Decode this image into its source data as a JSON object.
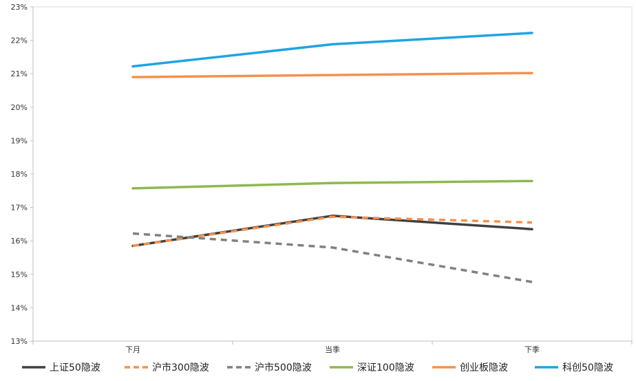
{
  "chart_data": {
    "type": "line",
    "title": "",
    "xlabel": "",
    "ylabel": "",
    "categories": [
      "下月",
      "当季",
      "下季"
    ],
    "y_ticks": [
      "13%",
      "14%",
      "15%",
      "16%",
      "17%",
      "18%",
      "19%",
      "20%",
      "21%",
      "22%",
      "23%"
    ],
    "ylim": [
      13,
      23
    ],
    "y_unit": "%",
    "grid": false,
    "legend_position": "bottom",
    "series": [
      {
        "name": "上证50隐波",
        "values": [
          15.85,
          16.75,
          16.35
        ],
        "color": "#404040",
        "dash": "solid"
      },
      {
        "name": "沪市300隐波",
        "values": [
          15.85,
          16.72,
          16.55
        ],
        "color": "#F4914B",
        "dash": "dashed"
      },
      {
        "name": "沪市500隐波",
        "values": [
          16.22,
          15.8,
          14.77
        ],
        "color": "#808080",
        "dash": "dashed"
      },
      {
        "name": "深证100隐波",
        "values": [
          17.57,
          17.73,
          17.79
        ],
        "color": "#8DB94E",
        "dash": "solid"
      },
      {
        "name": "创业板隐波",
        "values": [
          20.9,
          20.96,
          21.02
        ],
        "color": "#F4914B",
        "dash": "solid"
      },
      {
        "name": "科创50隐波",
        "values": [
          21.22,
          21.88,
          22.22
        ],
        "color": "#1EA4E3",
        "dash": "solid"
      }
    ]
  }
}
